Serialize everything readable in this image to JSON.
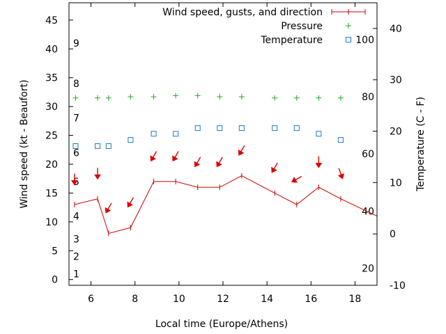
{
  "chart_data": {
    "type": "line",
    "xlabel": "Local time (Europe/Athens)",
    "ylabel": "Wind speed (kt - Beaufort)",
    "y2label": "Temperature (C - F)",
    "xlim": [
      5,
      19
    ],
    "ylim": [
      -1,
      48
    ],
    "y2lim": [
      -10,
      45
    ],
    "xticks": [
      6,
      8,
      10,
      12,
      14,
      16,
      18
    ],
    "yticks": [
      0,
      5,
      10,
      15,
      20,
      25,
      30,
      35,
      40,
      45
    ],
    "y2ticks": [
      -10,
      0,
      10,
      20,
      30,
      40
    ],
    "beaufort_labels": [
      {
        "label": "1",
        "y": 1
      },
      {
        "label": "2",
        "y": 4
      },
      {
        "label": "3",
        "y": 7
      },
      {
        "label": "4",
        "y": 11
      },
      {
        "label": "5",
        "y": 17
      },
      {
        "label": "6",
        "y": 22
      },
      {
        "label": "7",
        "y": 28
      },
      {
        "label": "8",
        "y": 34
      },
      {
        "label": "9",
        "y": 41
      }
    ],
    "fahrenheit_labels": [
      {
        "label": "20",
        "y2": -6.7
      },
      {
        "label": "40",
        "y2": 4.4
      },
      {
        "label": "60",
        "y2": 15.6
      },
      {
        "label": "80",
        "y2": 26.7
      },
      {
        "label": "100",
        "y2": 37.8
      }
    ],
    "legend": {
      "placement": "top-right",
      "entries": [
        "Wind speed, gusts, and direction",
        "Pressure",
        "Temperature"
      ]
    },
    "colors": {
      "wind": "#cc0000",
      "pressure": "#22aa22",
      "temperature": "#1f77c4",
      "arrow": "#dd0000"
    },
    "series": [
      {
        "name": "Wind speed, gusts, and direction",
        "x": [
          5.25,
          6.3,
          6.8,
          7.8,
          8.85,
          9.85,
          10.85,
          11.85,
          12.85,
          14.35,
          15.35,
          16.35,
          17.35,
          19
        ],
        "y": [
          13,
          14,
          8,
          9,
          17,
          17,
          16,
          16,
          18,
          15,
          13,
          16,
          14,
          11
        ],
        "direction_deg": [
          0,
          0,
          30,
          30,
          30,
          30,
          30,
          30,
          30,
          30,
          60,
          0,
          340
        ]
      },
      {
        "name": "Pressure",
        "x": [
          5.3,
          6.3,
          6.8,
          7.8,
          8.85,
          9.85,
          10.85,
          11.85,
          12.85,
          14.35,
          15.35,
          16.35,
          17.35
        ],
        "y": [
          31.5,
          31.5,
          31.5,
          31.7,
          31.7,
          31.9,
          31.9,
          31.7,
          31.7,
          31.5,
          31.5,
          31.5,
          31.5
        ]
      },
      {
        "name": "Temperature",
        "x": [
          5.3,
          6.3,
          6.8,
          7.8,
          8.85,
          9.85,
          10.85,
          11.85,
          12.85,
          14.35,
          15.35,
          16.35,
          17.35
        ],
        "y2": [
          17.1,
          17.1,
          17.1,
          18.3,
          19.5,
          19.5,
          20.6,
          20.6,
          20.6,
          20.6,
          20.6,
          19.5,
          18.3
        ]
      }
    ]
  }
}
